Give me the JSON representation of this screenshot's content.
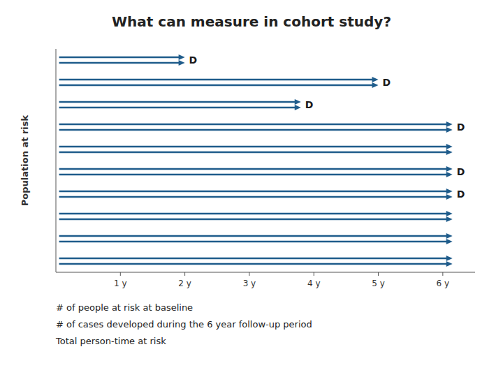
{
  "chart_data": {
    "type": "range",
    "orientation": "horizontal",
    "title": "What can measure in cohort study?",
    "y_label": "Population at risk",
    "color": "#1F5C8B",
    "categories": [
      null,
      null,
      null,
      null,
      null,
      null,
      null,
      null,
      null,
      null
    ],
    "starts": [
      0.05,
      0.05,
      0.05,
      0.05,
      0.05,
      0.05,
      0.05,
      0.05,
      0.05,
      0.05
    ],
    "ends": [
      2.0,
      5.0,
      3.8,
      6.15,
      6.15,
      6.15,
      6.15,
      6.15,
      6.15,
      6.15
    ],
    "end_labels": [
      "D",
      "D",
      "D",
      "D",
      null,
      "D",
      "D",
      null,
      null,
      null
    ],
    "xlim": [
      0,
      6.5
    ],
    "xticks": [
      {
        "value": 1,
        "label": "1 y"
      },
      {
        "value": 2,
        "label": "2 y"
      },
      {
        "value": 3,
        "label": "3 y"
      },
      {
        "value": 4,
        "label": "4 y"
      },
      {
        "value": 5,
        "label": "5 y"
      },
      {
        "value": 6,
        "label": "6 y"
      }
    ],
    "grid": false,
    "annotations": [
      "# of people at risk at baseline",
      "# of cases developed during the 6 year follow-up period",
      "Total person-time at risk"
    ]
  }
}
